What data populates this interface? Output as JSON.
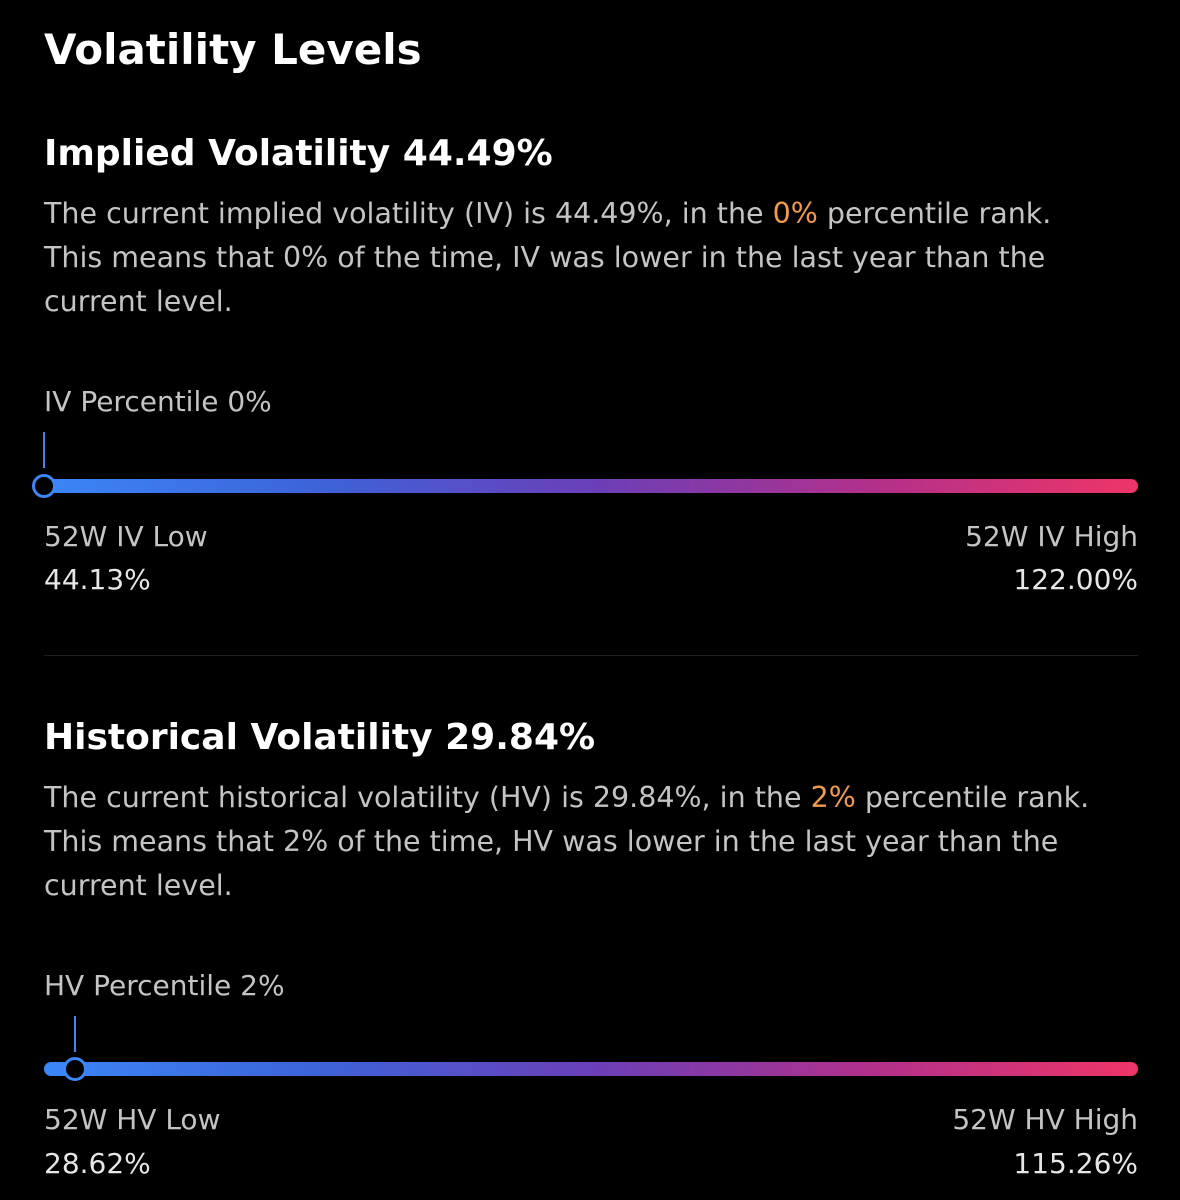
{
  "page": {
    "title": "Volatility Levels"
  },
  "implied": {
    "title": "Implied Volatility 44.49%",
    "desc": {
      "line1_pre": "The current implied volatility (IV) is 44.49%, in the ",
      "line1_accent": "0%",
      "line1_post": " percentile rank.",
      "line2": "This means that 0% of the time, IV was lower in the last year than the",
      "line3": "current level."
    },
    "percentile_label": "IV Percentile 0%",
    "percentile_value": 0,
    "low_label": "52W IV Low",
    "low_value": "44.13%",
    "high_label": "52W IV High",
    "high_value": "122.00%"
  },
  "historical": {
    "title": "Historical Volatility 29.84%",
    "desc": {
      "line1_pre": "The current historical volatility (HV) is 29.84%, in the ",
      "line1_accent": "2%",
      "line1_post": " percentile rank.",
      "line2": "This means that 2% of the time, HV was lower in the last year than the",
      "line3": "current level."
    },
    "percentile_label": "HV Percentile 2%",
    "percentile_value": 2,
    "low_label": "52W HV Low",
    "low_value": "28.62%",
    "high_label": "52W HV High",
    "high_value": "115.26%"
  },
  "colors": {
    "background": "#000000",
    "accent": "#f39a4c",
    "marker": "#3d86f5",
    "gradient_start": "#3b86f7",
    "gradient_end": "#ee3567"
  }
}
